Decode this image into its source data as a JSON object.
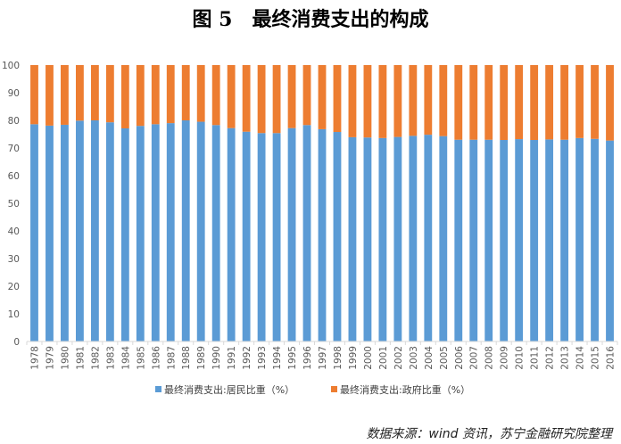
{
  "title": "图 5　最终消费支出的构成",
  "source_note": "数据来源：wind 资讯，苏宁金融研究院整理",
  "colors": {
    "household": "#5B9BD5",
    "government": "#ED7D31",
    "axis": "#D9D9D9",
    "text": "#595959"
  },
  "chart_data": {
    "type": "bar",
    "stacked": true,
    "categories": [
      "1978",
      "1979",
      "1980",
      "1981",
      "1982",
      "1983",
      "1984",
      "1985",
      "1986",
      "1987",
      "1988",
      "1989",
      "1990",
      "1991",
      "1992",
      "1993",
      "1994",
      "1995",
      "1996",
      "1997",
      "1998",
      "1999",
      "2000",
      "2001",
      "2002",
      "2003",
      "2004",
      "2005",
      "2006",
      "2007",
      "2008",
      "2009",
      "2010",
      "2011",
      "2012",
      "2013",
      "2014",
      "2015",
      "2016"
    ],
    "series": [
      {
        "name": "最终消费支出:居民比重（%）",
        "values": [
          78.6,
          78.1,
          78.4,
          79.9,
          80.0,
          79.3,
          77.1,
          78.0,
          78.6,
          79.0,
          80.0,
          79.5,
          78.3,
          77.2,
          75.9,
          75.4,
          75.4,
          77.2,
          78.3,
          76.8,
          75.8,
          73.9,
          73.8,
          73.6,
          74.0,
          74.4,
          74.8,
          74.3,
          73.0,
          73.0,
          73.0,
          72.9,
          73.2,
          72.9,
          73.1,
          73.0,
          73.6,
          73.3,
          72.7
        ]
      },
      {
        "name": "最终消费支出:政府比重（%）",
        "values": [
          21.4,
          21.9,
          21.6,
          20.1,
          20.0,
          20.7,
          22.9,
          22.0,
          21.4,
          21.0,
          20.0,
          20.5,
          21.7,
          22.8,
          24.1,
          24.6,
          24.6,
          22.8,
          21.7,
          23.2,
          24.2,
          26.1,
          26.2,
          26.4,
          26.0,
          25.6,
          25.2,
          25.7,
          27.0,
          27.0,
          27.0,
          27.1,
          26.8,
          27.1,
          26.9,
          27.0,
          26.4,
          26.7,
          27.3
        ]
      }
    ],
    "y_ticks": [
      0,
      10,
      20,
      30,
      40,
      50,
      60,
      70,
      80,
      90,
      100
    ],
    "ylim": [
      0,
      100
    ],
    "legend_position": "bottom",
    "grid": false
  }
}
